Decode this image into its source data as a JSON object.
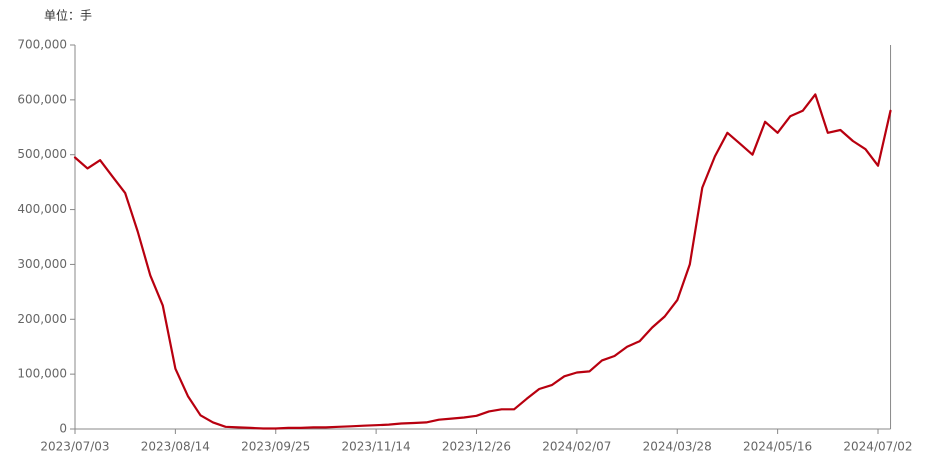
{
  "chart_data": {
    "type": "line",
    "unit_label": "单位：手",
    "categories": [
      "2023/07/03",
      null,
      null,
      null,
      null,
      null,
      null,
      null,
      "2023/08/14",
      null,
      null,
      null,
      null,
      null,
      null,
      null,
      "2023/09/25",
      null,
      null,
      null,
      null,
      null,
      null,
      null,
      "2023/11/14",
      null,
      null,
      null,
      null,
      null,
      null,
      null,
      "2023/12/26",
      null,
      null,
      null,
      null,
      null,
      null,
      null,
      "2024/02/07",
      null,
      null,
      null,
      null,
      null,
      null,
      null,
      "2024/03/28",
      null,
      null,
      null,
      null,
      null,
      null,
      null,
      "2024/05/16",
      null,
      null,
      null,
      null,
      null,
      null,
      null,
      "2024/07/02",
      null
    ],
    "values": [
      495000,
      475000,
      490000,
      460000,
      430000,
      360000,
      280000,
      225000,
      110000,
      60000,
      25000,
      12000,
      4000,
      3000,
      2000,
      1000,
      1000,
      2000,
      2000,
      3000,
      3000,
      4000,
      5000,
      6000,
      7000,
      8000,
      10000,
      11000,
      12000,
      17000,
      19000,
      21000,
      24000,
      32000,
      36000,
      36000,
      55000,
      73000,
      80000,
      96000,
      103000,
      105000,
      125000,
      133000,
      150000,
      160000,
      185000,
      205000,
      235000,
      300000,
      440000,
      497000,
      540000,
      520000,
      500000,
      560000,
      540000,
      570000,
      580000,
      610000,
      540000,
      545000,
      525000,
      510000,
      480000,
      580000
    ],
    "color": "#b8000f",
    "ylim": [
      0,
      700000
    ],
    "yticks": [
      0,
      {
        "value": 100000,
        "label": "100,000"
      },
      {
        "value": 200000,
        "label": "200,000"
      },
      {
        "value": 300000,
        "label": "300,000"
      },
      {
        "value": 400000,
        "label": "400,000"
      },
      {
        "value": 500000,
        "label": "500,000"
      },
      {
        "value": 600000,
        "label": "600,000"
      },
      {
        "value": 700000,
        "label": "700,000"
      }
    ],
    "grid": false
  }
}
